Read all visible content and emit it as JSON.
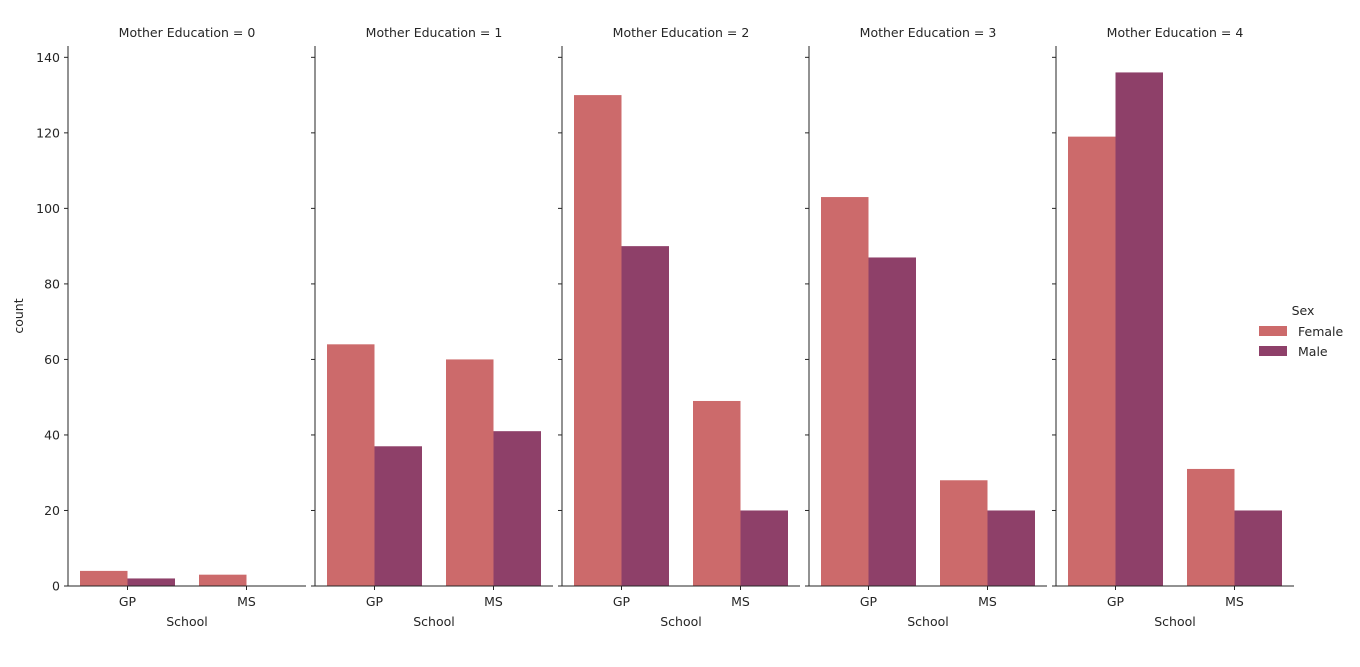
{
  "chart_data": {
    "type": "bar",
    "facet_label_template": "Mother Education = {v}",
    "facets": [
      "0",
      "1",
      "2",
      "3",
      "4"
    ],
    "categories": [
      "GP",
      "MS"
    ],
    "xlabel": "School",
    "ylabel": "count",
    "ylim": [
      0,
      143
    ],
    "yticks": [
      0,
      20,
      40,
      60,
      80,
      100,
      120,
      140
    ],
    "legend": {
      "title": "Sex",
      "placement": "right"
    },
    "series": [
      {
        "name": "Female",
        "color": "#cc6a6b",
        "values_by_facet": [
          [
            4,
            3
          ],
          [
            64,
            60
          ],
          [
            130,
            49
          ],
          [
            103,
            28
          ],
          [
            119,
            31
          ]
        ]
      },
      {
        "name": "Male",
        "color": "#8e4069",
        "values_by_facet": [
          [
            2,
            0
          ],
          [
            37,
            41
          ],
          [
            90,
            20
          ],
          [
            87,
            20
          ],
          [
            136,
            20
          ]
        ]
      }
    ]
  }
}
